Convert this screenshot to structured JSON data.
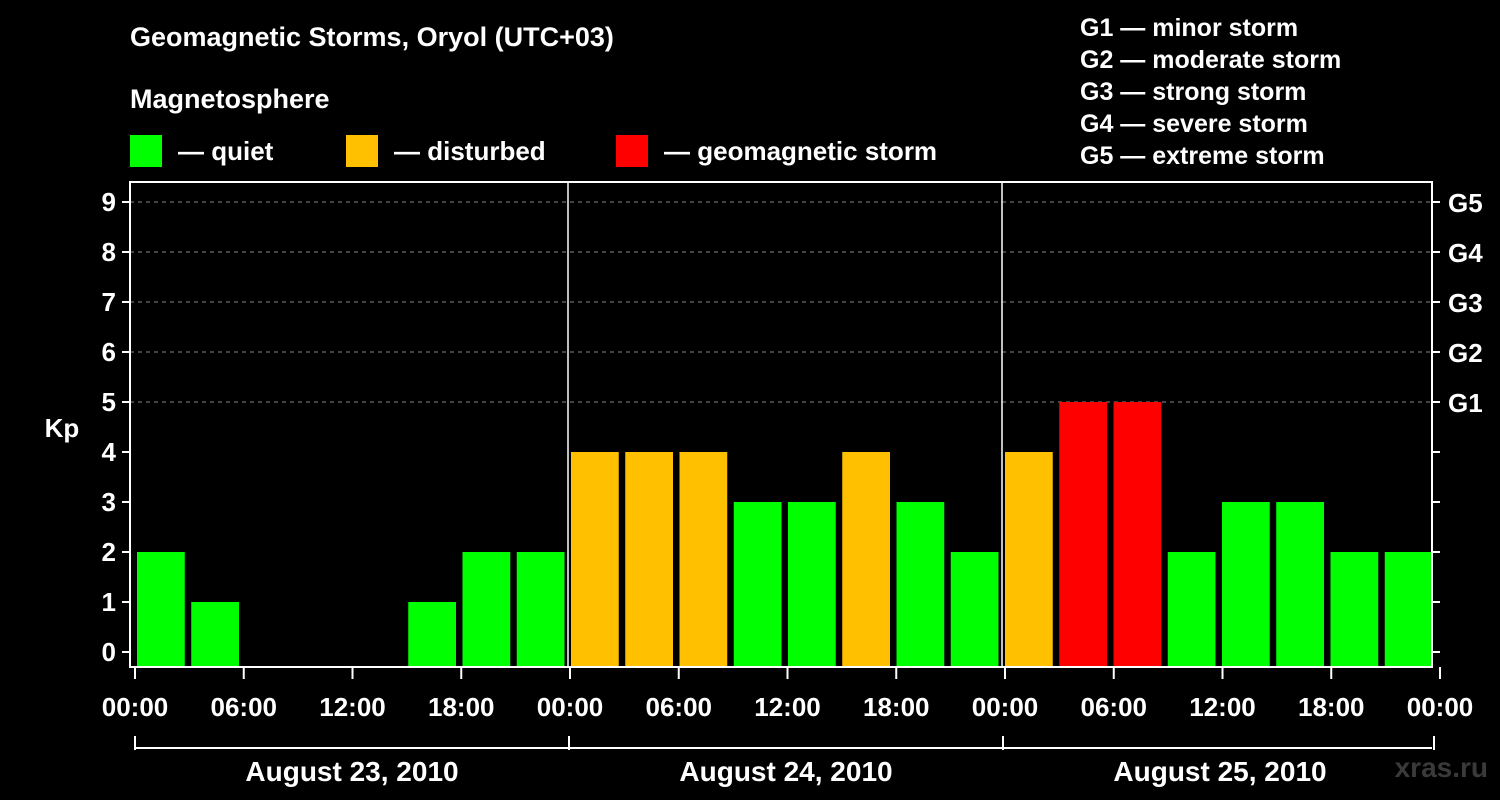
{
  "title": "Geomagnetic Storms, Oryol (UTC+03)",
  "subtitle": "Magnetosphere",
  "legend": [
    {
      "label": "— quiet",
      "color": "#00ff00"
    },
    {
      "label": "— disturbed",
      "color": "#ffc000"
    },
    {
      "label": "— geomagnetic storm",
      "color": "#ff0000"
    }
  ],
  "storm_levels": [
    "G1 — minor storm",
    "G2 — moderate storm",
    "G3 — strong storm",
    "G4 — severe storm",
    "G5 — extreme storm"
  ],
  "watermark": "xras.ru",
  "chart_data": {
    "type": "bar",
    "ylabel": "Kp",
    "ylim": [
      0,
      9
    ],
    "yticks": [
      0,
      1,
      2,
      3,
      4,
      5,
      6,
      7,
      8,
      9
    ],
    "right_axis_labels": [
      {
        "value": 5,
        "label": "G1"
      },
      {
        "value": 6,
        "label": "G2"
      },
      {
        "value": 7,
        "label": "G3"
      },
      {
        "value": 8,
        "label": "G4"
      },
      {
        "value": 9,
        "label": "G5"
      }
    ],
    "grid": "dashed horizontal at 5-9",
    "x_tick_labels": [
      "00:00",
      "06:00",
      "12:00",
      "18:00",
      "00:00",
      "06:00",
      "12:00",
      "18:00",
      "00:00",
      "06:00",
      "12:00",
      "18:00",
      "00:00"
    ],
    "days": [
      "August 23, 2010",
      "August 24, 2010",
      "August 25, 2010"
    ],
    "interval_hours": 3,
    "colors": {
      "quiet": "#00ff00",
      "disturbed": "#ffc000",
      "storm": "#ff0000"
    },
    "values": [
      2,
      1,
      0,
      0,
      0,
      1,
      2,
      2,
      4,
      4,
      4,
      3,
      3,
      4,
      3,
      2,
      4,
      5,
      5,
      2,
      3,
      3,
      2,
      2
    ],
    "levels": [
      "quiet",
      "quiet",
      "quiet",
      "quiet",
      "quiet",
      "quiet",
      "quiet",
      "quiet",
      "disturbed",
      "disturbed",
      "disturbed",
      "quiet",
      "quiet",
      "disturbed",
      "quiet",
      "quiet",
      "disturbed",
      "storm",
      "storm",
      "quiet",
      "quiet",
      "quiet",
      "quiet",
      "quiet"
    ]
  }
}
